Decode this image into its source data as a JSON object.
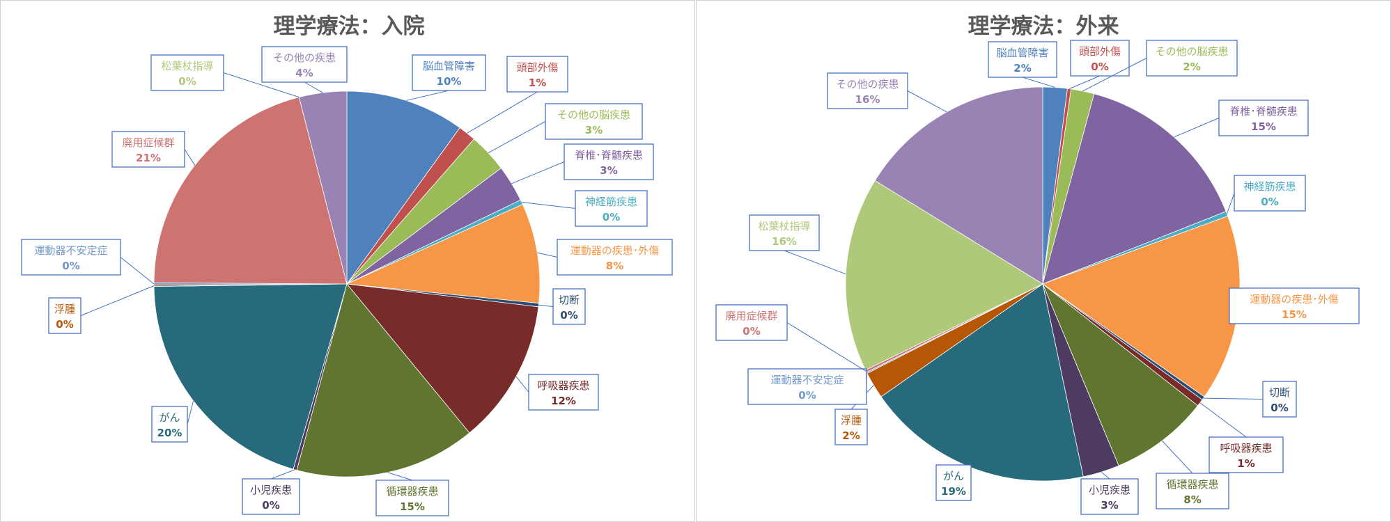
{
  "chart_data": [
    {
      "type": "pie",
      "title": "理学療法：入院",
      "slices": [
        {
          "label": "脳血管障害",
          "pct_label": "10%",
          "value": 10,
          "color": "#4f81bd"
        },
        {
          "label": "頭部外傷",
          "pct_label": "1%",
          "value": 1.5,
          "color": "#c0504d"
        },
        {
          "label": "その他の脳疾患",
          "pct_label": "3%",
          "value": 3.3,
          "color": "#9bbb59"
        },
        {
          "label": "脊椎･脊髄疾患",
          "pct_label": "3%",
          "value": 3.1,
          "color": "#8064a2"
        },
        {
          "label": "神経筋疾患",
          "pct_label": "0%",
          "value": 0.4,
          "color": "#4bacc6"
        },
        {
          "label": "運動器の疾患･外傷",
          "pct_label": "8%",
          "value": 8.4,
          "color": "#f79646"
        },
        {
          "label": "切断",
          "pct_label": "0%",
          "value": 0.3,
          "color": "#2c4d75"
        },
        {
          "label": "呼吸器疾患",
          "pct_label": "12%",
          "value": 12.2,
          "color": "#772c2a"
        },
        {
          "label": "循環器疾患",
          "pct_label": "15%",
          "value": 15.2,
          "color": "#5f7530"
        },
        {
          "label": "小児疾患",
          "pct_label": "0%",
          "value": 0.3,
          "color": "#4d3b62"
        },
        {
          "label": "がん",
          "pct_label": "20%",
          "value": 20.4,
          "color": "#276a7c"
        },
        {
          "label": "浮腫",
          "pct_label": "0%",
          "value": 0.1,
          "color": "#b65708"
        },
        {
          "label": "運動器不安定症",
          "pct_label": "0%",
          "value": 0.2,
          "color": "#729aca"
        },
        {
          "label": "廃用症候群",
          "pct_label": "21%",
          "value": 21.0,
          "color": "#cd7371"
        },
        {
          "label": "松葉杖指導",
          "pct_label": "0%",
          "value": 0.0,
          "color": "#afc97a"
        },
        {
          "label": "その他の疾患",
          "pct_label": "4%",
          "value": 4.0,
          "color": "#9983b5"
        }
      ]
    },
    {
      "type": "pie",
      "title": "理学療法：外来",
      "slices": [
        {
          "label": "脳血管障害",
          "pct_label": "2%",
          "value": 2.0,
          "color": "#4f81bd"
        },
        {
          "label": "頭部外傷",
          "pct_label": "0%",
          "value": 0.3,
          "color": "#c0504d"
        },
        {
          "label": "その他の脳疾患",
          "pct_label": "2%",
          "value": 1.9,
          "color": "#9bbb59"
        },
        {
          "label": "脊椎･脊髄疾患",
          "pct_label": "15%",
          "value": 14.8,
          "color": "#8064a2"
        },
        {
          "label": "神経筋疾患",
          "pct_label": "0%",
          "value": 0.4,
          "color": "#4bacc6"
        },
        {
          "label": "運動器の疾患･外傷",
          "pct_label": "15%",
          "value": 15.3,
          "color": "#f79646"
        },
        {
          "label": "切断",
          "pct_label": "0%",
          "value": 0.3,
          "color": "#2c4d75"
        },
        {
          "label": "呼吸器疾患",
          "pct_label": "1%",
          "value": 0.6,
          "color": "#772c2a"
        },
        {
          "label": "循環器疾患",
          "pct_label": "8%",
          "value": 8.1,
          "color": "#5f7530"
        },
        {
          "label": "小児疾患",
          "pct_label": "3%",
          "value": 3.0,
          "color": "#4d3b62"
        },
        {
          "label": "がん",
          "pct_label": "19%",
          "value": 18.6,
          "color": "#276a7c"
        },
        {
          "label": "浮腫",
          "pct_label": "2%",
          "value": 2.2,
          "color": "#b65708"
        },
        {
          "label": "運動器不安定症",
          "pct_label": "0%",
          "value": 0.1,
          "color": "#729aca"
        },
        {
          "label": "廃用症候群",
          "pct_label": "0%",
          "value": 0.2,
          "color": "#cd7371"
        },
        {
          "label": "松葉杖指導",
          "pct_label": "16%",
          "value": 16.0,
          "color": "#afc97a"
        },
        {
          "label": "その他の疾患",
          "pct_label": "16%",
          "value": 16.2,
          "color": "#9983b5"
        }
      ]
    }
  ]
}
